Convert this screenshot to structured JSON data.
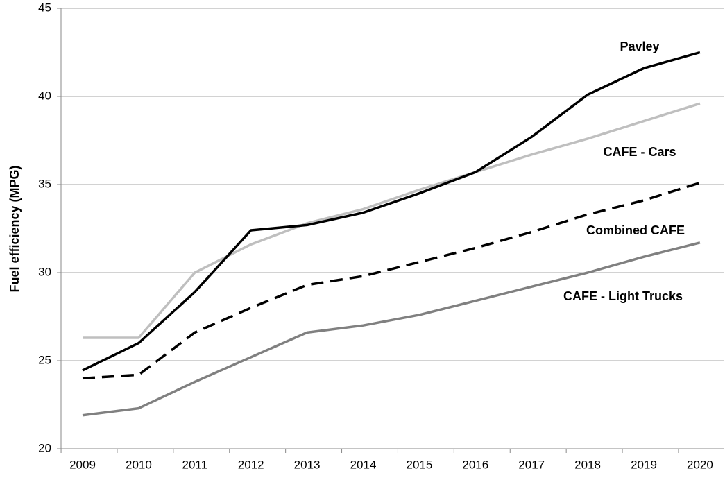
{
  "chart_data": {
    "type": "line",
    "y_label": "Fuel efficiency (MPG)",
    "categories": [
      "2009",
      "2010",
      "2011",
      "2012",
      "2013",
      "2014",
      "2015",
      "2016",
      "2017",
      "2018",
      "2019",
      "2020"
    ],
    "series": [
      {
        "name": "CAFE - Cars",
        "color": "#bfbfbf",
        "dashed": false,
        "values": [
          26.3,
          26.3,
          30.0,
          31.6,
          32.8,
          33.6,
          34.7,
          35.7,
          36.7,
          37.6,
          38.6,
          39.6
        ]
      },
      {
        "name": "CAFE - Light Trucks",
        "color": "#808080",
        "dashed": false,
        "values": [
          21.9,
          22.3,
          23.8,
          25.2,
          26.6,
          27.0,
          27.6,
          28.4,
          29.2,
          30.0,
          30.9,
          31.7
        ]
      },
      {
        "name": "Combined CAFE",
        "color": "#000000",
        "dashed": true,
        "values": [
          24.0,
          24.2,
          26.6,
          28.0,
          29.3,
          29.8,
          30.6,
          31.4,
          32.3,
          33.3,
          34.1,
          35.1
        ]
      },
      {
        "name": "Pavley",
        "color": "#000000",
        "dashed": false,
        "values": [
          24.45,
          26.0,
          28.9,
          32.4,
          32.7,
          33.4,
          34.5,
          35.7,
          37.7,
          40.1,
          41.6,
          42.5
        ]
      }
    ],
    "ylim": [
      20,
      45
    ],
    "yticks": [
      20,
      25,
      30,
      35,
      40,
      45
    ],
    "grid": true
  }
}
